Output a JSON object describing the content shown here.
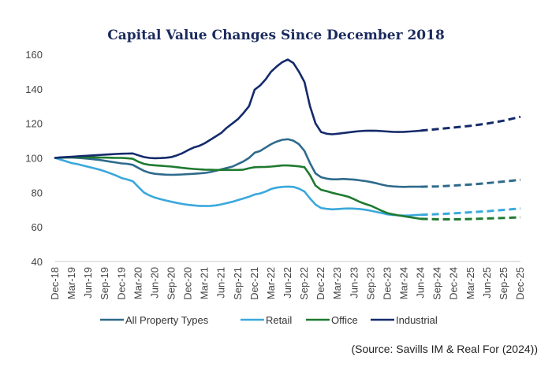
{
  "chart_data": {
    "type": "line",
    "title": "Capital Value Changes Since December 2018",
    "source": "(Source: Savills IM & Real For (2024))",
    "xlabel": "",
    "ylabel": "",
    "ylim": [
      40,
      160
    ],
    "yticks": [
      40,
      60,
      80,
      100,
      120,
      140,
      160
    ],
    "legend_position": "bottom",
    "grid": false,
    "categories": [
      "Dec-18",
      "Mar-19",
      "Jun-19",
      "Sep-19",
      "Dec-19",
      "Mar-20",
      "Jun-20",
      "Sep-20",
      "Dec-20",
      "Mar-21",
      "Jun-21",
      "Sep-21",
      "Dec-21",
      "Mar-22",
      "Jun-22",
      "Sep-22",
      "Dec-22",
      "Mar-23",
      "Jun-23",
      "Sep-23",
      "Dec-23",
      "Mar-24",
      "Jun-24",
      "Sep-24",
      "Dec-24",
      "Mar-25",
      "Jun-25",
      "Sep-25",
      "Dec-25"
    ],
    "forecast_start": "Jun-24",
    "series": [
      {
        "name": "All Property Types",
        "color": "#2e6a8c",
        "points": [
          [
            "Dec-18",
            100
          ],
          [
            "Jan-19",
            100.1
          ],
          [
            "Feb-19",
            100.2
          ],
          [
            "Mar-19",
            100.2
          ],
          [
            "Apr-19",
            100
          ],
          [
            "May-19",
            99.8
          ],
          [
            "Jun-19",
            99.5
          ],
          [
            "Jul-19",
            99.2
          ],
          [
            "Aug-19",
            98.8
          ],
          [
            "Sep-19",
            98.3
          ],
          [
            "Oct-19",
            97.8
          ],
          [
            "Nov-19",
            97.3
          ],
          [
            "Dec-19",
            96.8
          ],
          [
            "Jan-20",
            96.6
          ],
          [
            "Feb-20",
            96
          ],
          [
            "Mar-20",
            94.2
          ],
          [
            "Apr-20",
            92.5
          ],
          [
            "May-20",
            91.4
          ],
          [
            "Jun-20",
            90.8
          ],
          [
            "Jul-20",
            90.5
          ],
          [
            "Aug-20",
            90.3
          ],
          [
            "Sep-20",
            90.2
          ],
          [
            "Oct-20",
            90.3
          ],
          [
            "Nov-20",
            90.4
          ],
          [
            "Dec-20",
            90.6
          ],
          [
            "Jan-21",
            90.8
          ],
          [
            "Feb-21",
            91
          ],
          [
            "Mar-21",
            91.3
          ],
          [
            "Apr-21",
            91.8
          ],
          [
            "May-21",
            92.5
          ],
          [
            "Jun-21",
            93.4
          ],
          [
            "Jul-21",
            94.2
          ],
          [
            "Aug-21",
            95
          ],
          [
            "Sep-21",
            96.5
          ],
          [
            "Oct-21",
            98
          ],
          [
            "Nov-21",
            100
          ],
          [
            "Dec-21",
            103
          ],
          [
            "Jan-22",
            104
          ],
          [
            "Feb-22",
            106
          ],
          [
            "Mar-22",
            108
          ],
          [
            "Apr-22",
            109.5
          ],
          [
            "May-22",
            110.5
          ],
          [
            "Jun-22",
            110.8
          ],
          [
            "Jul-22",
            110
          ],
          [
            "Aug-22",
            108
          ],
          [
            "Sep-22",
            104
          ],
          [
            "Oct-22",
            97
          ],
          [
            "Nov-22",
            91
          ],
          [
            "Dec-22",
            88.8
          ],
          [
            "Jan-23",
            88
          ],
          [
            "Feb-23",
            87.6
          ],
          [
            "Mar-23",
            87.6
          ],
          [
            "Apr-23",
            87.8
          ],
          [
            "May-23",
            87.6
          ],
          [
            "Jun-23",
            87.4
          ],
          [
            "Jul-23",
            87
          ],
          [
            "Aug-23",
            86.6
          ],
          [
            "Sep-23",
            86
          ],
          [
            "Oct-23",
            85.3
          ],
          [
            "Nov-23",
            84.5
          ],
          [
            "Dec-23",
            83.8
          ],
          [
            "Jan-24",
            83.5
          ],
          [
            "Feb-24",
            83.3
          ],
          [
            "Mar-24",
            83.2
          ],
          [
            "Apr-24",
            83.3
          ],
          [
            "May-24",
            83.3
          ],
          [
            "Jun-24",
            83.3
          ],
          [
            "Sep-24",
            83.5
          ],
          [
            "Dec-24",
            84
          ],
          [
            "Mar-25",
            84.6
          ],
          [
            "Jun-25",
            85.4
          ],
          [
            "Sep-25",
            86.3
          ],
          [
            "Dec-25",
            87.3
          ]
        ]
      },
      {
        "name": "Retail",
        "color": "#3aa8dc",
        "points": [
          [
            "Dec-18",
            100
          ],
          [
            "Jan-19",
            99
          ],
          [
            "Feb-19",
            98
          ],
          [
            "Mar-19",
            97
          ],
          [
            "Apr-19",
            96.4
          ],
          [
            "May-19",
            95.6
          ],
          [
            "Jun-19",
            94.8
          ],
          [
            "Jul-19",
            94
          ],
          [
            "Aug-19",
            93.2
          ],
          [
            "Sep-19",
            92.2
          ],
          [
            "Oct-19",
            91
          ],
          [
            "Nov-19",
            89.8
          ],
          [
            "Dec-19",
            88.3
          ],
          [
            "Jan-20",
            87.5
          ],
          [
            "Feb-20",
            86.5
          ],
          [
            "Mar-20",
            83.2
          ],
          [
            "Apr-20",
            80
          ],
          [
            "May-20",
            78.3
          ],
          [
            "Jun-20",
            77
          ],
          [
            "Jul-20",
            76.1
          ],
          [
            "Aug-20",
            75.3
          ],
          [
            "Sep-20",
            74.6
          ],
          [
            "Oct-20",
            73.9
          ],
          [
            "Nov-20",
            73.3
          ],
          [
            "Dec-20",
            72.8
          ],
          [
            "Jan-21",
            72.5
          ],
          [
            "Feb-21",
            72.2
          ],
          [
            "Mar-21",
            72.1
          ],
          [
            "Apr-21",
            72.2
          ],
          [
            "May-21",
            72.5
          ],
          [
            "Jun-21",
            73.1
          ],
          [
            "Jul-21",
            73.8
          ],
          [
            "Aug-21",
            74.6
          ],
          [
            "Sep-21",
            75.6
          ],
          [
            "Oct-21",
            76.5
          ],
          [
            "Nov-21",
            77.5
          ],
          [
            "Dec-21",
            78.8
          ],
          [
            "Jan-22",
            79.4
          ],
          [
            "Feb-22",
            80.5
          ],
          [
            "Mar-22",
            82
          ],
          [
            "Apr-22",
            82.8
          ],
          [
            "May-22",
            83.2
          ],
          [
            "Jun-22",
            83.4
          ],
          [
            "Jul-22",
            83.2
          ],
          [
            "Aug-22",
            82.2
          ],
          [
            "Sep-22",
            80.5
          ],
          [
            "Oct-22",
            76.5
          ],
          [
            "Nov-22",
            73
          ],
          [
            "Dec-22",
            71
          ],
          [
            "Jan-23",
            70.5
          ],
          [
            "Feb-23",
            70.2
          ],
          [
            "Mar-23",
            70.4
          ],
          [
            "Apr-23",
            70.6
          ],
          [
            "May-23",
            70.7
          ],
          [
            "Jun-23",
            70.6
          ],
          [
            "Jul-23",
            70.4
          ],
          [
            "Aug-23",
            70
          ],
          [
            "Sep-23",
            69.4
          ],
          [
            "Oct-23",
            68.7
          ],
          [
            "Nov-23",
            68
          ],
          [
            "Dec-23",
            67.3
          ],
          [
            "Jan-24",
            66.9
          ],
          [
            "Feb-24",
            66.7
          ],
          [
            "Mar-24",
            66.6
          ],
          [
            "Apr-24",
            66.7
          ],
          [
            "May-24",
            66.9
          ],
          [
            "Jun-24",
            67
          ],
          [
            "Sep-24",
            67.4
          ],
          [
            "Dec-24",
            67.9
          ],
          [
            "Mar-25",
            68.5
          ],
          [
            "Jun-25",
            69.1
          ],
          [
            "Sep-25",
            69.9
          ],
          [
            "Dec-25",
            70.7
          ]
        ]
      },
      {
        "name": "Office",
        "color": "#1f7a30",
        "points": [
          [
            "Dec-18",
            100
          ],
          [
            "Jan-19",
            100.2
          ],
          [
            "Feb-19",
            100.3
          ],
          [
            "Mar-19",
            100.4
          ],
          [
            "Apr-19",
            100.4
          ],
          [
            "May-19",
            100.3
          ],
          [
            "Jun-19",
            100.3
          ],
          [
            "Jul-19",
            100.3
          ],
          [
            "Aug-19",
            100.2
          ],
          [
            "Sep-19",
            100.2
          ],
          [
            "Oct-19",
            100.1
          ],
          [
            "Nov-19",
            100
          ],
          [
            "Dec-19",
            100
          ],
          [
            "Jan-20",
            99.8
          ],
          [
            "Feb-20",
            99.5
          ],
          [
            "Mar-20",
            97.8
          ],
          [
            "Apr-20",
            96.6
          ],
          [
            "May-20",
            96
          ],
          [
            "Jun-20",
            95.7
          ],
          [
            "Jul-20",
            95.5
          ],
          [
            "Aug-20",
            95.2
          ],
          [
            "Sep-20",
            95
          ],
          [
            "Oct-20",
            94.6
          ],
          [
            "Nov-20",
            94.2
          ],
          [
            "Dec-20",
            93.9
          ],
          [
            "Jan-21",
            93.6
          ],
          [
            "Feb-21",
            93.4
          ],
          [
            "Mar-21",
            93.2
          ],
          [
            "Apr-21",
            93.1
          ],
          [
            "May-21",
            93
          ],
          [
            "Jun-21",
            93
          ],
          [
            "Jul-21",
            93
          ],
          [
            "Aug-21",
            93
          ],
          [
            "Sep-21",
            93
          ],
          [
            "Oct-21",
            93.2
          ],
          [
            "Nov-21",
            94
          ],
          [
            "Dec-21",
            94.6
          ],
          [
            "Jan-22",
            94.7
          ],
          [
            "Feb-22",
            94.8
          ],
          [
            "Mar-22",
            95
          ],
          [
            "Apr-22",
            95.3
          ],
          [
            "May-22",
            95.6
          ],
          [
            "Jun-22",
            95.6
          ],
          [
            "Jul-22",
            95.4
          ],
          [
            "Aug-22",
            95.1
          ],
          [
            "Sep-22",
            94.6
          ],
          [
            "Oct-22",
            90
          ],
          [
            "Nov-22",
            84
          ],
          [
            "Dec-22",
            81.5
          ],
          [
            "Jan-23",
            80.7
          ],
          [
            "Feb-23",
            79.8
          ],
          [
            "Mar-23",
            79
          ],
          [
            "Apr-23",
            78.3
          ],
          [
            "May-23",
            77.4
          ],
          [
            "Jun-23",
            76
          ],
          [
            "Jul-23",
            74.5
          ],
          [
            "Aug-23",
            73.3
          ],
          [
            "Sep-23",
            72.3
          ],
          [
            "Oct-23",
            70.8
          ],
          [
            "Nov-23",
            69.3
          ],
          [
            "Dec-23",
            68
          ],
          [
            "Jan-24",
            67.3
          ],
          [
            "Feb-24",
            66.7
          ],
          [
            "Mar-24",
            66.2
          ],
          [
            "Apr-24",
            65.7
          ],
          [
            "May-24",
            65.2
          ],
          [
            "Jun-24",
            64.7
          ],
          [
            "Sep-24",
            64.4
          ],
          [
            "Dec-24",
            64.4
          ],
          [
            "Mar-25",
            64.6
          ],
          [
            "Jun-25",
            64.9
          ],
          [
            "Sep-25",
            65.2
          ],
          [
            "Dec-25",
            65.6
          ]
        ]
      },
      {
        "name": "Industrial",
        "color": "#142a6b",
        "points": [
          [
            "Dec-18",
            100
          ],
          [
            "Jan-19",
            100.3
          ],
          [
            "Feb-19",
            100.5
          ],
          [
            "Mar-19",
            100.7
          ],
          [
            "Apr-19",
            100.9
          ],
          [
            "May-19",
            101.1
          ],
          [
            "Jun-19",
            101.3
          ],
          [
            "Jul-19",
            101.5
          ],
          [
            "Aug-19",
            101.7
          ],
          [
            "Sep-19",
            101.9
          ],
          [
            "Oct-19",
            102.1
          ],
          [
            "Nov-19",
            102.3
          ],
          [
            "Dec-19",
            102.4
          ],
          [
            "Jan-20",
            102.5
          ],
          [
            "Feb-20",
            102.6
          ],
          [
            "Mar-20",
            101.5
          ],
          [
            "Apr-20",
            100.5
          ],
          [
            "May-20",
            100
          ],
          [
            "Jun-20",
            99.8
          ],
          [
            "Jul-20",
            99.9
          ],
          [
            "Aug-20",
            100.1
          ],
          [
            "Sep-20",
            100.5
          ],
          [
            "Oct-20",
            101.5
          ],
          [
            "Nov-20",
            102.8
          ],
          [
            "Dec-20",
            104.5
          ],
          [
            "Jan-21",
            106
          ],
          [
            "Feb-21",
            107
          ],
          [
            "Mar-21",
            108.5
          ],
          [
            "Apr-21",
            110.5
          ],
          [
            "May-21",
            112.5
          ],
          [
            "Jun-21",
            114.5
          ],
          [
            "Jul-21",
            117.5
          ],
          [
            "Aug-21",
            120
          ],
          [
            "Sep-21",
            122.5
          ],
          [
            "Oct-21",
            126
          ],
          [
            "Nov-21",
            130
          ],
          [
            "Dec-21",
            139.5
          ],
          [
            "Jan-22",
            142
          ],
          [
            "Feb-22",
            145.5
          ],
          [
            "Mar-22",
            150
          ],
          [
            "Apr-22",
            153
          ],
          [
            "May-22",
            155.5
          ],
          [
            "Jun-22",
            157
          ],
          [
            "Jul-22",
            155
          ],
          [
            "Aug-22",
            150
          ],
          [
            "Sep-22",
            144
          ],
          [
            "Oct-22",
            130
          ],
          [
            "Nov-22",
            120
          ],
          [
            "Dec-22",
            115
          ],
          [
            "Jan-23",
            114
          ],
          [
            "Feb-23",
            113.7
          ],
          [
            "Mar-23",
            114
          ],
          [
            "Apr-23",
            114.4
          ],
          [
            "May-23",
            114.8
          ],
          [
            "Jun-23",
            115.2
          ],
          [
            "Jul-23",
            115.5
          ],
          [
            "Aug-23",
            115.7
          ],
          [
            "Sep-23",
            115.8
          ],
          [
            "Oct-23",
            115.7
          ],
          [
            "Nov-23",
            115.5
          ],
          [
            "Dec-23",
            115.3
          ],
          [
            "Jan-24",
            115.1
          ],
          [
            "Feb-24",
            115
          ],
          [
            "Mar-24",
            115.1
          ],
          [
            "Apr-24",
            115.3
          ],
          [
            "May-24",
            115.5
          ],
          [
            "Jun-24",
            115.8
          ],
          [
            "Sep-24",
            116.7
          ],
          [
            "Dec-24",
            117.6
          ],
          [
            "Mar-25",
            118.6
          ],
          [
            "Jun-25",
            119.9
          ],
          [
            "Sep-25",
            121.6
          ],
          [
            "Dec-25",
            123.8
          ]
        ]
      }
    ]
  }
}
